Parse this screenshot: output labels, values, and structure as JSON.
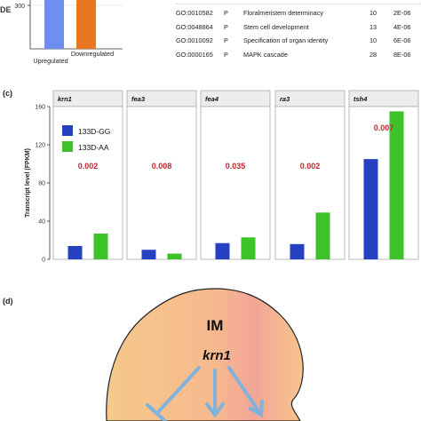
{
  "panel_b": {
    "ylabel_fragment": "DE",
    "ytick_label": "300",
    "categories": [
      "Upregulated",
      "Downregulated"
    ],
    "colors": [
      "#6f8ff0",
      "#e87722"
    ],
    "go_table": [
      {
        "id": "GO:0010582",
        "cat": "P",
        "term": "Floralmeristem determinacy",
        "n": "10",
        "p": "2E-06"
      },
      {
        "id": "GO:0048864",
        "cat": "P",
        "term": "Stem cell development",
        "n": "13",
        "p": "4E-06"
      },
      {
        "id": "GO:0010092",
        "cat": "P",
        "term": "Specification of organ identity",
        "n": "10",
        "p": "6E-06"
      },
      {
        "id": "GO:0000165",
        "cat": "P",
        "term": "MAPK cascade",
        "n": "28",
        "p": "8E-06"
      }
    ]
  },
  "panel_c_label": "(c)",
  "panel_d_label": "(d)",
  "chart_data": {
    "type": "bar",
    "ylabel": "Transcript level (FPKM)",
    "ylim": [
      0,
      160
    ],
    "yticks": [
      0,
      40,
      80,
      120,
      160
    ],
    "legend": {
      "placement": "top-left of first facet"
    },
    "series": [
      {
        "name": "133D-GG",
        "color": "#2540c0"
      },
      {
        "name": "133D-AA",
        "color": "#3ec22a"
      }
    ],
    "facets": [
      {
        "gene": "krn1",
        "values": [
          14,
          27
        ],
        "pvalue": "0.002",
        "pvalue_y": 95
      },
      {
        "gene": "fea3",
        "values": [
          10,
          6
        ],
        "pvalue": "0.008",
        "pvalue_y": 95
      },
      {
        "gene": "fea4",
        "values": [
          17,
          23
        ],
        "pvalue": "0.035",
        "pvalue_y": 95
      },
      {
        "gene": "ra3",
        "values": [
          16,
          49
        ],
        "pvalue": "0.002",
        "pvalue_y": 95
      },
      {
        "gene": "tsh4",
        "values": [
          105,
          155
        ],
        "pvalue": "0.007",
        "pvalue_y": 135
      }
    ],
    "pvalue_color": "#c0282d"
  },
  "diagram": {
    "title": "IM",
    "gene": "krn1",
    "arrow_color": "#7fb2dc"
  }
}
